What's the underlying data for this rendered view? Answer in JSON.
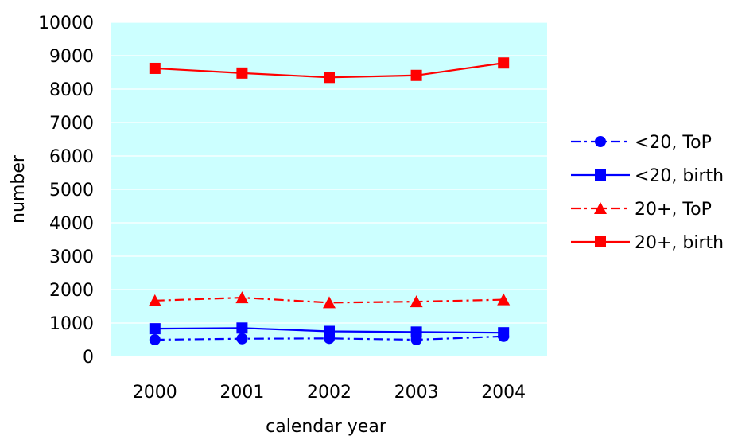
{
  "chart_data": {
    "type": "line",
    "title": "",
    "xlabel": "calendar year",
    "ylabel": "number",
    "ylim": [
      0,
      10000
    ],
    "yticks": [
      0,
      1000,
      2000,
      3000,
      4000,
      5000,
      6000,
      7000,
      8000,
      9000,
      10000
    ],
    "categories": [
      "2000",
      "2001",
      "2002",
      "2003",
      "2004"
    ],
    "grid": "horizontal gridlines",
    "legend_position": "right",
    "plot_background": "#ccffff",
    "series": [
      {
        "name": "<20, ToP",
        "values": [
          500,
          530,
          540,
          500,
          600
        ],
        "color": "#0000ff",
        "line_style": "dash-dot",
        "marker": "circle"
      },
      {
        "name": "<20, birth",
        "values": [
          830,
          850,
          750,
          730,
          710
        ],
        "color": "#0000ff",
        "line_style": "solid",
        "marker": "square"
      },
      {
        "name": "20+, ToP",
        "values": [
          1670,
          1760,
          1610,
          1640,
          1700
        ],
        "color": "#ff0000",
        "line_style": "dash-dot",
        "marker": "triangle"
      },
      {
        "name": "20+, birth",
        "values": [
          8620,
          8480,
          8350,
          8410,
          8780
        ],
        "color": "#ff0000",
        "line_style": "solid",
        "marker": "square"
      }
    ]
  }
}
